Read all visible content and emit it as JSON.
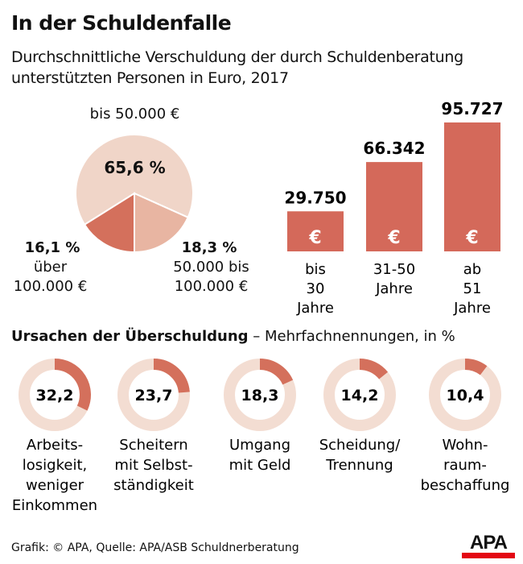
{
  "title": "In der Schuldenfalle",
  "subtitle": "Durchschnittliche Verschuldung der durch Schuldenberatung unterstützten Personen in Euro, 2017",
  "chart_data": [
    {
      "type": "pie",
      "slices": [
        {
          "label": "bis 50.000 €",
          "value": 65.6,
          "display": "65,6 %",
          "color": "#f0d5c8"
        },
        {
          "label": "50.000 bis 100.000 €",
          "value": 18.3,
          "display": "18,3 %",
          "color": "#e8b5a2"
        },
        {
          "label": "über 100.000 €",
          "value": 16.1,
          "display": "16,1 %",
          "color": "#d4705c"
        }
      ]
    },
    {
      "type": "bar",
      "categories": [
        "bis 30 Jahre",
        "31-50 Jahre",
        "ab 51 Jahre"
      ],
      "values": [
        29750,
        66342,
        95727
      ],
      "labels": [
        "29.750",
        "66.342",
        "95.727"
      ],
      "bar_symbol": "€",
      "color": "#d4695a"
    },
    {
      "type": "pie",
      "title": "Ursachen der Überschuldung",
      "note": "– Mehrfachnennungen, in %",
      "style": "donut",
      "items": [
        {
          "label": "Arbeits-\nlosigkeit,\nweniger\nEinkommen",
          "value": 32.2,
          "display": "32,2"
        },
        {
          "label": "Scheitern\nmit Selbst-\nständigkeit",
          "value": 23.7,
          "display": "23,7"
        },
        {
          "label": "Umgang\nmit Geld",
          "value": 18.3,
          "display": "18,3"
        },
        {
          "label": "Scheidung/\nTrennung",
          "value": 14.2,
          "display": "14,2"
        },
        {
          "label": "Wohn-\nraum-\nbeschaffung",
          "value": 10.4,
          "display": "10,4"
        }
      ],
      "colors": {
        "ring": "#f3ddd2",
        "arc": "#d4705c"
      }
    }
  ],
  "footer": "Grafik: © APA, Quelle: APA/ASB Schuldnerberatung",
  "logo": "APA"
}
